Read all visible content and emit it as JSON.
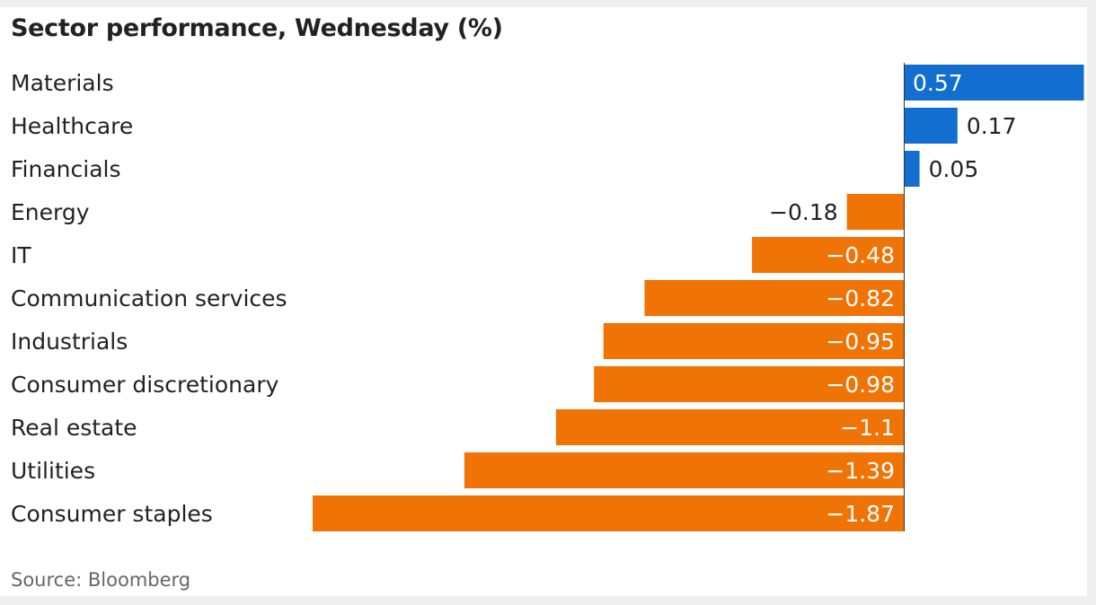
{
  "chart_data": {
    "type": "bar",
    "orientation": "horizontal",
    "title": "Sector performance, Wednesday (%)",
    "categories": [
      "Materials",
      "Healthcare",
      "Financials",
      "Energy",
      "IT",
      "Communication services",
      "Industrials",
      "Consumer discretionary",
      "Real estate",
      "Utilities",
      "Consumer staples"
    ],
    "values": [
      0.57,
      0.17,
      0.05,
      -0.18,
      -0.48,
      -0.82,
      -0.95,
      -0.98,
      -1.1,
      -1.39,
      -1.87
    ],
    "value_labels": [
      "0.57",
      "0.17",
      "0.05",
      "−0.18",
      "−0.48",
      "−0.82",
      "−0.95",
      "−0.98",
      "−1.1",
      "−1.39",
      "−1.87"
    ],
    "xlim": [
      -1.87,
      0.57
    ],
    "colors": {
      "positive": "#126fcf",
      "negative": "#f07305",
      "axis": "#333333"
    },
    "grid": false,
    "source": "Source: Bloomberg"
  }
}
